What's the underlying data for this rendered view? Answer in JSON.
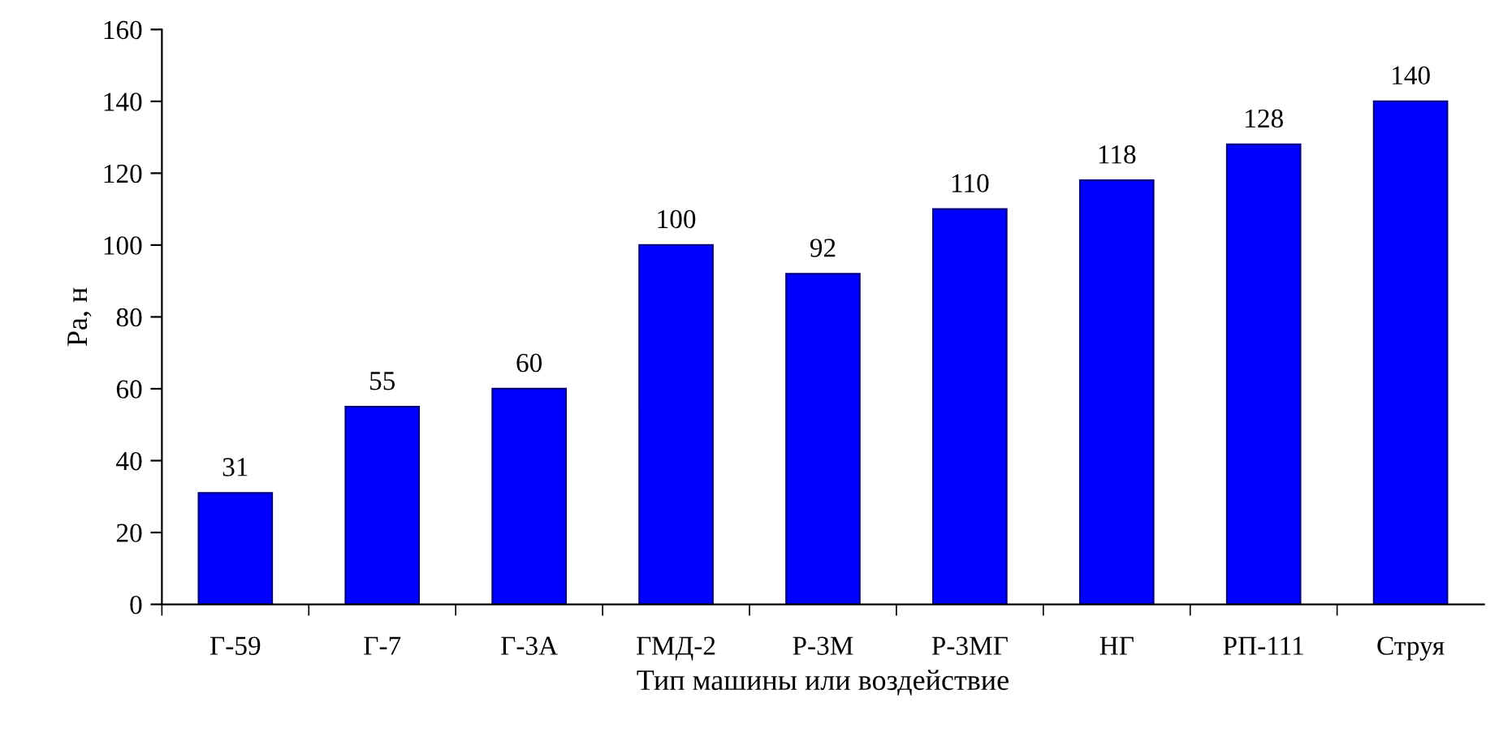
{
  "chart_data": {
    "type": "bar",
    "xlabel": "Тип машины или воздействие",
    "ylabel": "Pa, н",
    "categories": [
      "Г-59",
      "Г-7",
      "Г-3А",
      "ГМД-2",
      "Р-3М",
      "Р-3МГ",
      "НГ",
      "РП-111",
      "Струя"
    ],
    "values": [
      31,
      55,
      60,
      100,
      92,
      110,
      118,
      128,
      140
    ],
    "color": "#0000ff",
    "ylim": [
      0,
      160
    ],
    "yticks": [
      0,
      20,
      40,
      60,
      80,
      100,
      120,
      140,
      160
    ],
    "data_labels": true
  }
}
